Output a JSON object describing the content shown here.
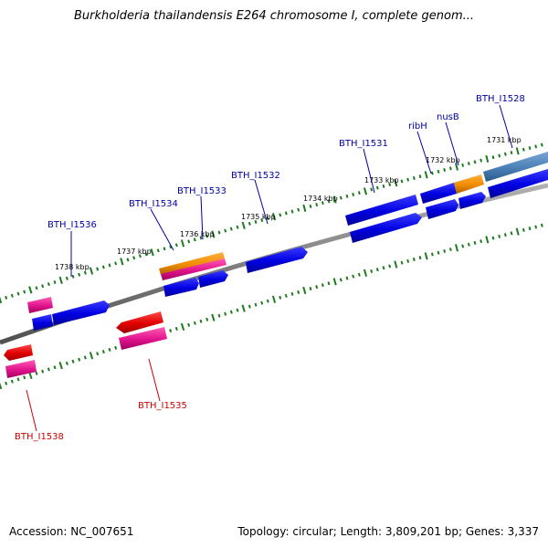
{
  "header": {
    "title": "Burkholderia thailandensis E264 chromosome I, complete genom..."
  },
  "footer": {
    "accession": "Accession: NC_007651",
    "topology": "Topology: circular; Length: 3,809,201 bp; Genes: 3,337"
  },
  "kbp_ticks": [
    "1738 kbp",
    "1737 kbp",
    "1736 kbp",
    "1735 kbp",
    "1734 kbp",
    "1733 kbp",
    "1732 kbp",
    "1731 kbp"
  ],
  "genes_forward": [
    {
      "label": "BTH_I1536",
      "color": "#0000aa"
    },
    {
      "label": "BTH_I1534",
      "color": "#0000aa"
    },
    {
      "label": "BTH_I1533",
      "color": "#0000aa"
    },
    {
      "label": "BTH_I1532",
      "color": "#0000aa"
    },
    {
      "label": "BTH_I1531",
      "color": "#0000aa"
    },
    {
      "label": "ribH",
      "color": "#0000aa"
    },
    {
      "label": "nusB",
      "color": "#0000aa"
    },
    {
      "label": "BTH_I1528",
      "color": "#0000aa"
    }
  ],
  "genes_reverse": [
    {
      "label": "BTH_I1535",
      "color": "#cc0000"
    },
    {
      "label": "BTH_I1538",
      "color": "#cc0000"
    }
  ],
  "colors": {
    "backbone": "#808080",
    "tick_dots": "#1f7a1f",
    "cds_forward": "#0000e6",
    "cds_reverse": "#e60000",
    "gene_magenta": "#e0138c",
    "gene_orange": "#f08c00",
    "rrna_steelblue": "#4a7fb5"
  }
}
